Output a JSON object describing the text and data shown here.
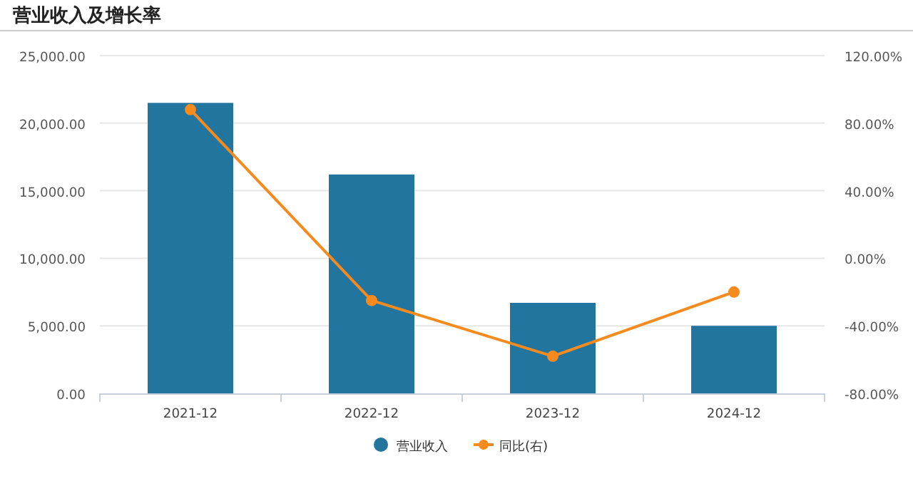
{
  "chart_data": {
    "type": "bar",
    "title": "营业收入及增长率",
    "categories": [
      "2021-12",
      "2022-12",
      "2023-12",
      "2024-12"
    ],
    "series": [
      {
        "name": "营业收入",
        "color": "#21759f",
        "values": [
          21500,
          16200,
          6700,
          5000
        ]
      },
      {
        "name": "同比(右)",
        "type": "line",
        "axis": "y2",
        "color": "#f58b1f",
        "marker": "circle",
        "values": [
          88,
          -25,
          -58,
          -20
        ]
      }
    ],
    "ylim": [
      0,
      25000
    ],
    "yticks": [
      {
        "value": 0,
        "label": "0.00"
      },
      {
        "value": 5000,
        "label": "5,000.00"
      },
      {
        "value": 10000,
        "label": "10,000.00"
      },
      {
        "value": 15000,
        "label": "15,000.00"
      },
      {
        "value": 20000,
        "label": "20,000.00"
      },
      {
        "value": 25000,
        "label": "25,000.00"
      }
    ],
    "y2lim": [
      -80,
      120
    ],
    "y2ticks": [
      {
        "value": -80,
        "label": "-80.00%"
      },
      {
        "value": -40,
        "label": "-40.00%"
      },
      {
        "value": 0,
        "label": "0.00%"
      },
      {
        "value": 40,
        "label": "40.00%"
      },
      {
        "value": 80,
        "label": "80.00%"
      },
      {
        "value": 120,
        "label": "120.00%"
      }
    ],
    "grid": "y",
    "legend": "bottom"
  }
}
